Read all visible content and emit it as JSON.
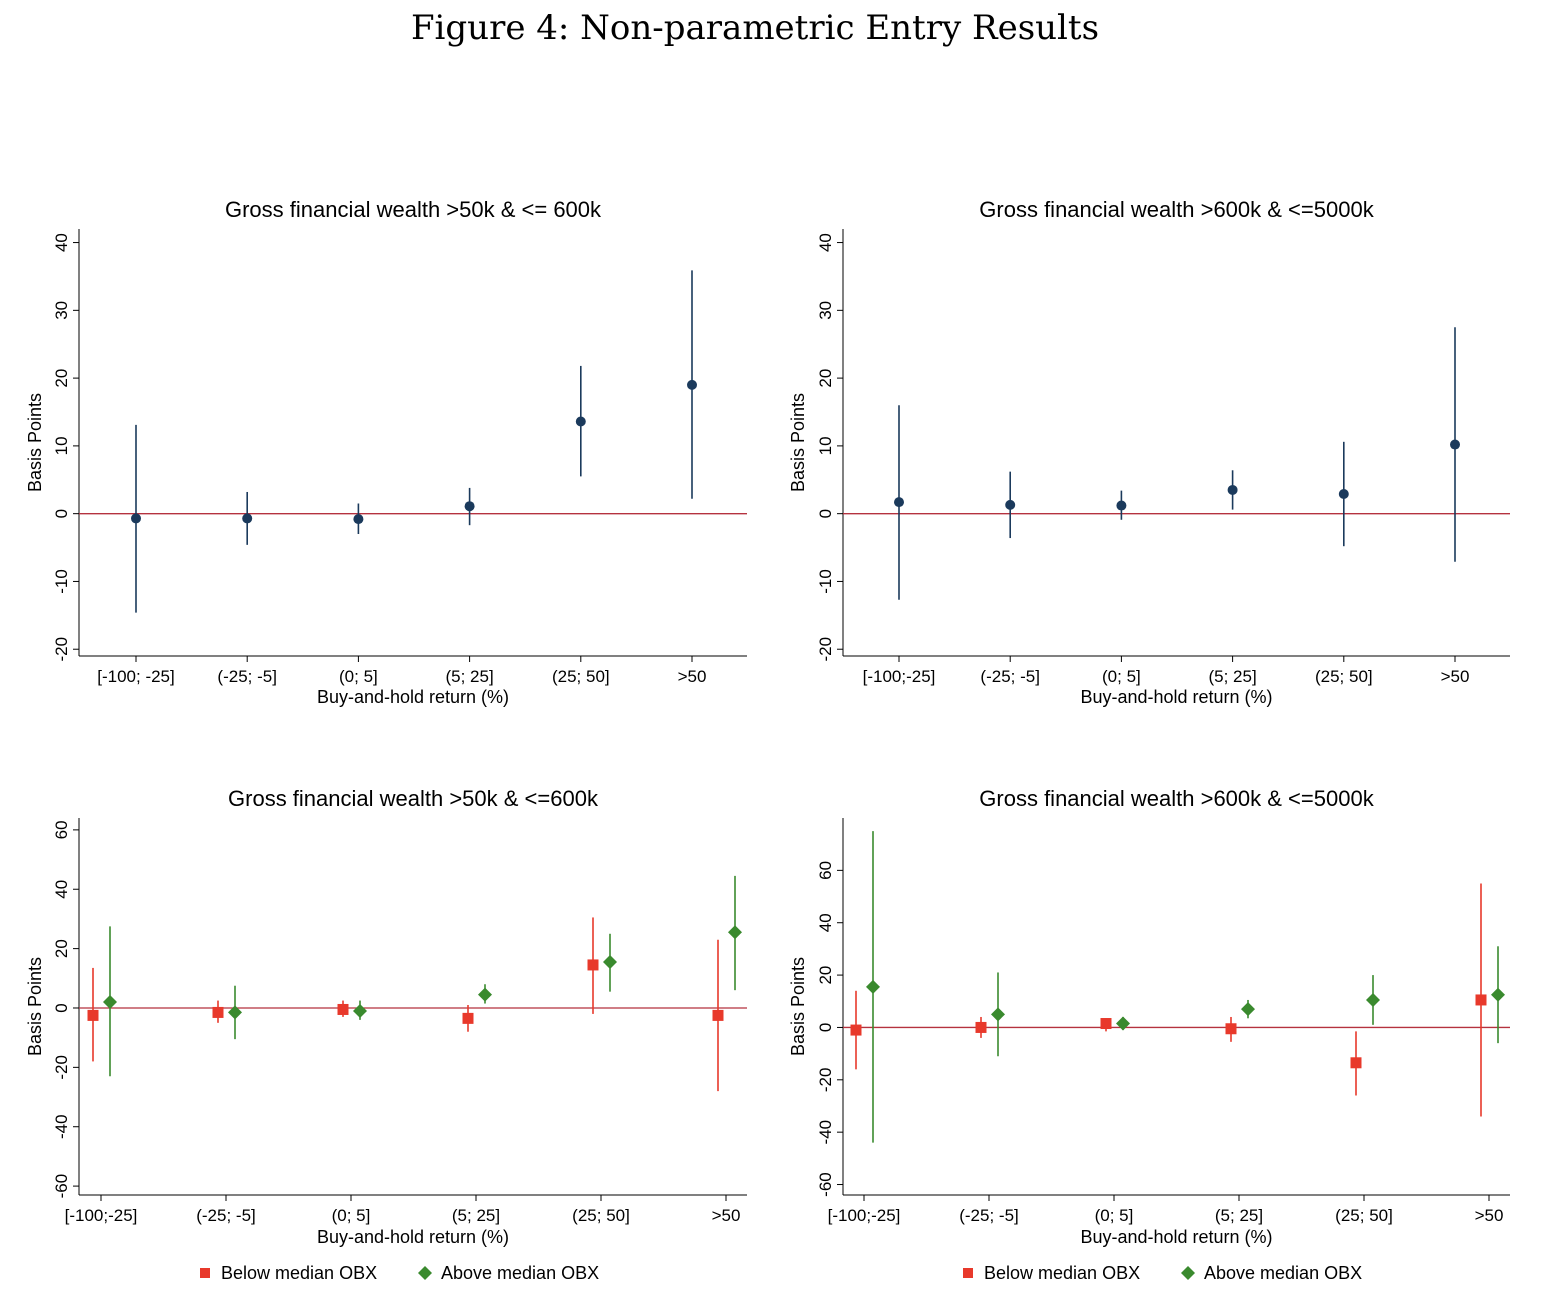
{
  "figure_title": "Figure 4: Non-parametric Entry Results",
  "colors": {
    "single": "#1b3a5c",
    "below": "#e8392b",
    "above": "#3a8a2e",
    "zero_line": "#b5323f"
  },
  "chart_data": [
    {
      "type": "scatter",
      "title": "Gross financial wealth >50k & <= 600k",
      "xlabel": "Buy-and-hold return (%)",
      "ylabel": "Basis Points",
      "categories": [
        "[-100; -25]",
        "(-25; -5]",
        "(0; 5]",
        "(5; 25]",
        "(25; 50]",
        ">50"
      ],
      "yticks": [
        -20,
        -10,
        0,
        10,
        20,
        30,
        40
      ],
      "ylim": [
        -21,
        42
      ],
      "series": [
        {
          "estimates": [
            -0.7,
            -0.7,
            -0.8,
            1.1,
            13.6,
            19.0
          ],
          "ci_low": [
            -14.6,
            -4.6,
            -3.0,
            -1.7,
            5.5,
            2.2
          ],
          "ci_high": [
            13.1,
            3.2,
            1.5,
            3.8,
            21.8,
            35.9
          ]
        }
      ]
    },
    {
      "type": "scatter",
      "title": "Gross financial wealth >600k & <=5000k",
      "xlabel": "Buy-and-hold return (%)",
      "ylabel": "Basis Points",
      "categories": [
        "[-100;-25]",
        "(-25; -5]",
        "(0; 5]",
        "(5; 25]",
        "(25; 50]",
        ">50"
      ],
      "yticks": [
        -20,
        -10,
        0,
        10,
        20,
        30,
        40
      ],
      "ylim": [
        -21,
        42
      ],
      "series": [
        {
          "estimates": [
            1.7,
            1.3,
            1.2,
            3.5,
            2.9,
            10.2
          ],
          "ci_low": [
            -12.7,
            -3.6,
            -0.9,
            0.6,
            -4.8,
            -7.1
          ],
          "ci_high": [
            16.0,
            6.2,
            3.4,
            6.4,
            10.6,
            27.5
          ]
        }
      ]
    },
    {
      "type": "scatter",
      "title": "Gross financial wealth >50k & <=600k",
      "xlabel": "Buy-and-hold return (%)",
      "ylabel": "Basis Points",
      "categories": [
        "[-100;-25]",
        "(-25; -5]",
        "(0; 5]",
        "(5; 25]",
        "(25; 50]",
        ">50"
      ],
      "yticks": [
        -60,
        -40,
        -20,
        0,
        20,
        40,
        60
      ],
      "ylim": [
        -63,
        64
      ],
      "legend_position": "bottom",
      "series": [
        {
          "name": "Below median OBX",
          "estimates": [
            -2.5,
            -1.5,
            -0.5,
            -3.5,
            14.5,
            -2.5
          ],
          "ci_low": [
            -18.0,
            -5.0,
            -3.0,
            -8.0,
            -2.0,
            -28.0
          ],
          "ci_high": [
            13.5,
            2.5,
            2.5,
            1.0,
            30.5,
            23.0
          ]
        },
        {
          "name": "Above median OBX",
          "estimates": [
            2.0,
            -1.5,
            -1.0,
            4.5,
            15.5,
            25.5
          ],
          "ci_low": [
            -23.0,
            -10.5,
            -4.0,
            1.5,
            5.5,
            6.0
          ],
          "ci_high": [
            27.5,
            7.5,
            2.5,
            8.0,
            25.0,
            44.5
          ]
        }
      ]
    },
    {
      "type": "scatter",
      "title": "Gross financial wealth >600k & <=5000k",
      "xlabel": "Buy-and-hold return (%)",
      "ylabel": "Basis Points",
      "categories": [
        "[-100;-25]",
        "(-25; -5]",
        "(0; 5]",
        "(5; 25]",
        "(25; 50]",
        ">50"
      ],
      "yticks": [
        -60,
        -40,
        -20,
        0,
        20,
        40,
        60
      ],
      "ylim": [
        -64,
        80
      ],
      "legend_position": "bottom",
      "series": [
        {
          "name": "Below median OBX",
          "estimates": [
            -1.0,
            0.0,
            1.5,
            -0.5,
            -13.5,
            10.5
          ],
          "ci_low": [
            -16.0,
            -4.0,
            -1.5,
            -5.5,
            -26.0,
            -34.0
          ],
          "ci_high": [
            14.0,
            4.0,
            3.5,
            4.0,
            -1.5,
            55.0
          ]
        },
        {
          "name": "Above median OBX",
          "estimates": [
            15.5,
            5.0,
            1.5,
            7.0,
            10.5,
            12.5
          ],
          "ci_low": [
            -44.0,
            -11.0,
            -1.0,
            3.5,
            1.0,
            -6.0
          ],
          "ci_high": [
            75.0,
            21.0,
            4.0,
            10.5,
            20.0,
            31.0
          ]
        }
      ]
    }
  ]
}
